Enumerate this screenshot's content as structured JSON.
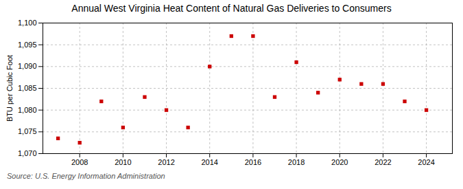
{
  "chart_data": {
    "type": "scatter",
    "title": "Annual West Virginia Heat Content of Natural Gas Deliveries to Consumers",
    "ylabel": "BTU per Cubic Foot",
    "source": "Source: U.S. Energy Information Administration",
    "x": [
      2007,
      2008,
      2009,
      2010,
      2011,
      2012,
      2013,
      2014,
      2015,
      2016,
      2017,
      2018,
      2019,
      2020,
      2021,
      2022,
      2023,
      2024
    ],
    "values": [
      1073.5,
      1072.5,
      1082,
      1076,
      1083,
      1080,
      1076,
      1090,
      1097,
      1097,
      1083,
      1091,
      1084,
      1087,
      1086,
      1086,
      1082,
      1080
    ],
    "color": "#cc0000",
    "marker": "square",
    "xlim": [
      2006.3,
      2025.2
    ],
    "xticks": [
      2008,
      2010,
      2012,
      2014,
      2016,
      2018,
      2020,
      2022,
      2024
    ],
    "ylim": [
      1070,
      1100
    ],
    "yticks": [
      {
        "value": 1070,
        "label": "1,070"
      },
      {
        "value": 1075,
        "label": "1,075"
      },
      {
        "value": 1080,
        "label": "1,080"
      },
      {
        "value": 1085,
        "label": "1,085"
      },
      {
        "value": 1090,
        "label": "1,090"
      },
      {
        "value": 1095,
        "label": "1,095"
      },
      {
        "value": 1100,
        "label": "1,100"
      }
    ],
    "grid": true
  }
}
